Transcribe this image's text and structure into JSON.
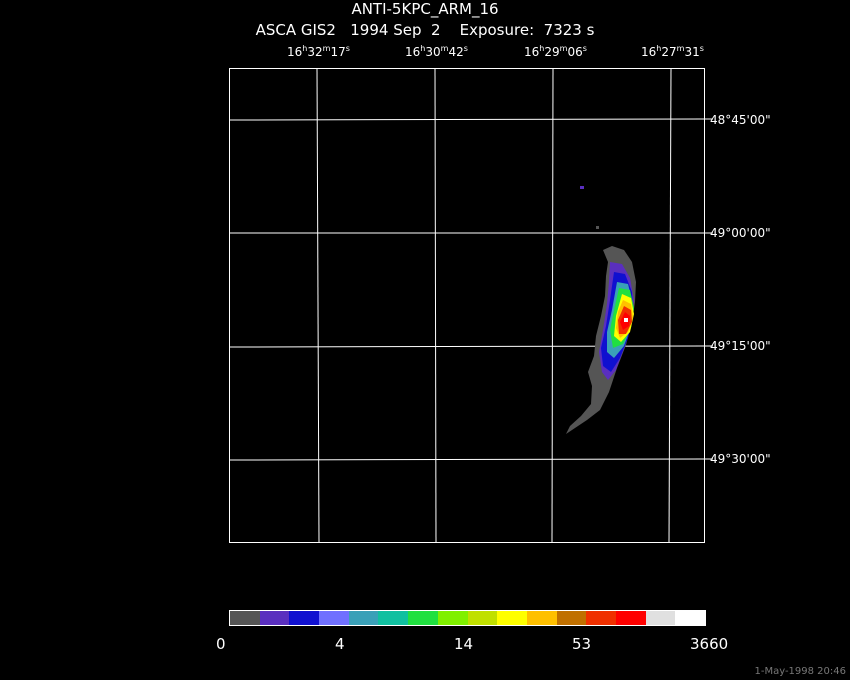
{
  "header": {
    "title": "ANTI-5KPC_ARM_16",
    "subtitle": "ASCA GIS2   1994 Sep  2    Exposure:  7323 s"
  },
  "ra_axis": {
    "labels": [
      {
        "h": "16",
        "m": "32",
        "s": "17"
      },
      {
        "h": "16",
        "m": "30",
        "s": "42"
      },
      {
        "h": "16",
        "m": "29",
        "s": "06"
      },
      {
        "h": "16",
        "m": "27",
        "s": "31"
      }
    ],
    "units": {
      "h": "h",
      "m": "m",
      "s": "s"
    }
  },
  "dec_axis": {
    "labels": [
      "48°45'00\"",
      "49°00'00\"",
      "49°15'00\"",
      "49°30'00\""
    ]
  },
  "colorbar": {
    "colors": [
      "#555555",
      "#5a2fbf",
      "#1010d0",
      "#7070ff",
      "#3aa0b8",
      "#10c0a0",
      "#20e040",
      "#80f000",
      "#c0e000",
      "#ffff00",
      "#ffc000",
      "#c07000",
      "#f03000",
      "#ff0000",
      "#e0e0e0",
      "#ffffff"
    ],
    "tick_labels": [
      "0",
      "4",
      "14",
      "53",
      "3660"
    ]
  },
  "footer": {
    "timestamp": "1-May-1998 20:46"
  }
}
